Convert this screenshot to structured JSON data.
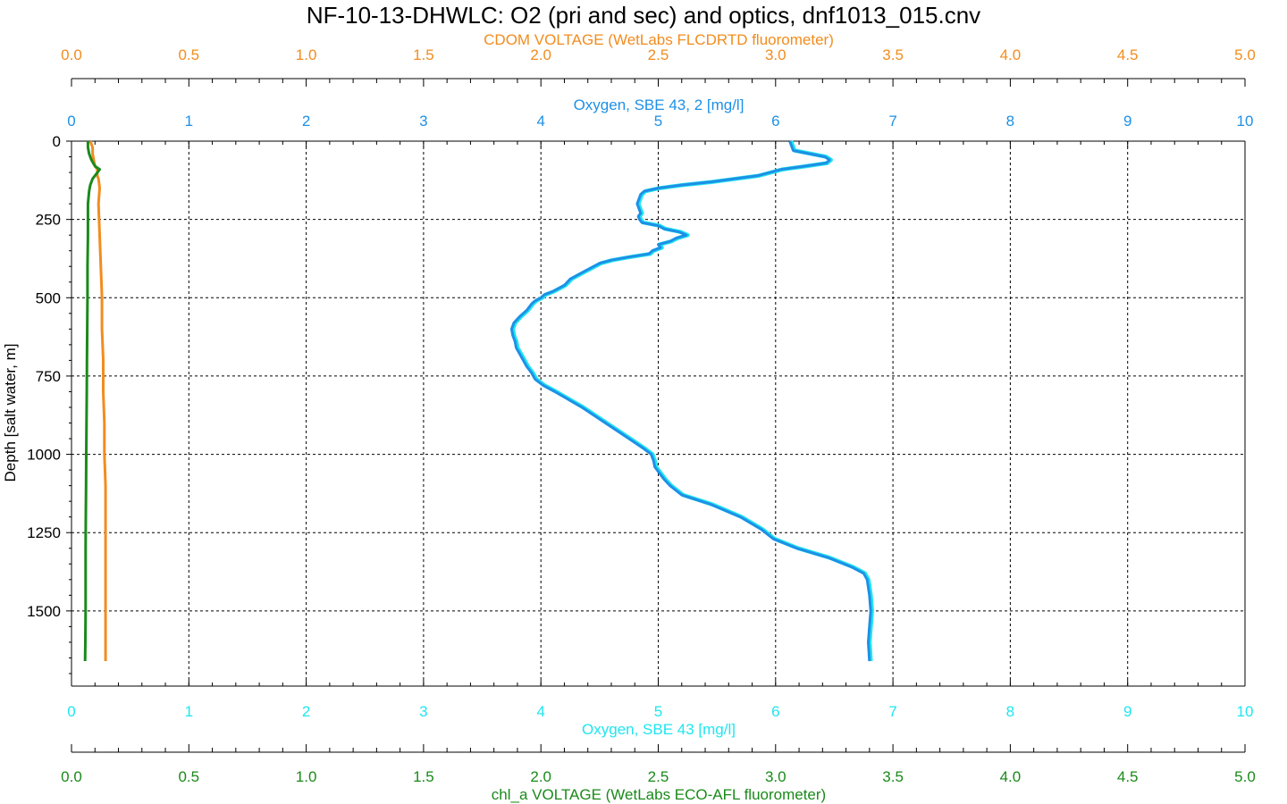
{
  "chart_data": {
    "type": "line",
    "title": "NF-10-13-DHWLC: O2 (pri and sec) and optics, dnf1013_015.cnv",
    "grid": true,
    "colors": {
      "cdom": "#f28c1e",
      "oxy2": "#1e90e6",
      "oxy1": "#1ee6f0",
      "chl": "#1a8a1a",
      "axis": "#000000"
    },
    "y_axis": {
      "label": "Depth [salt water, m]",
      "range": [
        0,
        1740
      ],
      "ticks": [
        "0",
        "250",
        "500",
        "750",
        "1000",
        "1250",
        "1500"
      ],
      "tick_values": [
        0,
        250,
        500,
        750,
        1000,
        1250,
        1500
      ],
      "inverted": true
    },
    "x_axes": {
      "cdom": {
        "label": "CDOM VOLTAGE (WetLabs FLCDRTD fluorometer)",
        "range": [
          0,
          5
        ],
        "ticks": [
          "0.0",
          "0.5",
          "1.0",
          "1.5",
          "2.0",
          "2.5",
          "3.0",
          "3.5",
          "4.0",
          "4.5",
          "5.0"
        ]
      },
      "oxy2": {
        "label": "Oxygen, SBE 43, 2 [mg/l]",
        "range": [
          0,
          10
        ],
        "ticks": [
          "0",
          "1",
          "2",
          "3",
          "4",
          "5",
          "6",
          "7",
          "8",
          "9",
          "10"
        ]
      },
      "oxy1": {
        "label": "Oxygen, SBE 43 [mg/l]",
        "range": [
          0,
          10
        ],
        "ticks": [
          "0",
          "1",
          "2",
          "3",
          "4",
          "5",
          "6",
          "7",
          "8",
          "9",
          "10"
        ]
      },
      "chl": {
        "label": "chl_a VOLTAGE (WetLabs ECO-AFL fluorometer)",
        "range": [
          0,
          5
        ],
        "ticks": [
          "0.0",
          "0.5",
          "1.0",
          "1.5",
          "2.0",
          "2.5",
          "3.0",
          "3.5",
          "4.0",
          "4.5",
          "5.0"
        ]
      }
    },
    "series": [
      {
        "key": "oxy1",
        "axis": "oxy1",
        "depth": [
          0,
          30,
          50,
          60,
          70,
          80,
          90,
          100,
          110,
          120,
          130,
          140,
          150,
          160,
          170,
          180,
          190,
          200,
          210,
          220,
          230,
          240,
          250,
          260,
          270,
          280,
          290,
          300,
          310,
          320,
          330,
          340,
          350,
          360,
          370,
          380,
          390,
          400,
          420,
          440,
          460,
          480,
          490,
          500,
          510,
          520,
          540,
          560,
          580,
          600,
          620,
          640,
          660,
          680,
          700,
          720,
          740,
          760,
          780,
          800,
          850,
          900,
          950,
          980,
          1000,
          1020,
          1040,
          1060,
          1080,
          1100,
          1130,
          1160,
          1200,
          1240,
          1270,
          1300,
          1330,
          1360,
          1380,
          1400,
          1450,
          1500,
          1550,
          1600,
          1660
        ],
        "values": [
          6.12,
          6.15,
          6.42,
          6.46,
          6.43,
          6.25,
          6.05,
          5.95,
          5.85,
          5.65,
          5.45,
          5.2,
          5.0,
          4.88,
          4.85,
          4.84,
          4.83,
          4.82,
          4.83,
          4.84,
          4.85,
          4.83,
          4.84,
          4.86,
          5.0,
          5.05,
          5.18,
          5.24,
          5.15,
          5.1,
          5.0,
          5.02,
          4.95,
          4.92,
          4.75,
          4.6,
          4.5,
          4.45,
          4.35,
          4.25,
          4.2,
          4.1,
          4.03,
          4.0,
          3.95,
          3.92,
          3.88,
          3.82,
          3.77,
          3.75,
          3.76,
          3.78,
          3.79,
          3.82,
          3.85,
          3.88,
          3.92,
          3.95,
          4.02,
          4.12,
          4.35,
          4.55,
          4.75,
          4.87,
          4.94,
          4.96,
          4.97,
          5.01,
          5.05,
          5.1,
          5.2,
          5.45,
          5.7,
          5.88,
          5.98,
          6.18,
          6.45,
          6.65,
          6.75,
          6.78,
          6.8,
          6.81,
          6.8,
          6.79,
          6.8
        ]
      },
      {
        "key": "oxy2",
        "axis": "oxy2",
        "depth": [
          0,
          30,
          50,
          60,
          70,
          80,
          90,
          100,
          110,
          120,
          130,
          140,
          150,
          160,
          170,
          180,
          190,
          200,
          210,
          220,
          230,
          240,
          250,
          260,
          270,
          280,
          290,
          300,
          310,
          320,
          330,
          340,
          350,
          360,
          370,
          380,
          390,
          400,
          420,
          440,
          460,
          480,
          490,
          500,
          510,
          520,
          540,
          560,
          580,
          600,
          620,
          640,
          660,
          680,
          700,
          720,
          740,
          760,
          780,
          800,
          850,
          900,
          950,
          980,
          1000,
          1020,
          1040,
          1060,
          1080,
          1100,
          1130,
          1160,
          1200,
          1240,
          1270,
          1300,
          1330,
          1360,
          1380,
          1400,
          1450,
          1500,
          1550,
          1600,
          1660
        ],
        "values": [
          6.12,
          6.15,
          6.42,
          6.46,
          6.43,
          6.25,
          6.05,
          5.95,
          5.85,
          5.65,
          5.45,
          5.2,
          5.0,
          4.88,
          4.85,
          4.84,
          4.83,
          4.82,
          4.83,
          4.84,
          4.85,
          4.83,
          4.84,
          4.86,
          5.0,
          5.05,
          5.18,
          5.24,
          5.15,
          5.1,
          5.0,
          5.02,
          4.95,
          4.92,
          4.75,
          4.6,
          4.5,
          4.45,
          4.35,
          4.25,
          4.2,
          4.1,
          4.03,
          4.0,
          3.95,
          3.92,
          3.88,
          3.82,
          3.77,
          3.75,
          3.76,
          3.78,
          3.79,
          3.82,
          3.85,
          3.88,
          3.92,
          3.95,
          4.02,
          4.12,
          4.35,
          4.55,
          4.75,
          4.87,
          4.94,
          4.96,
          4.97,
          5.01,
          5.05,
          5.1,
          5.2,
          5.45,
          5.7,
          5.88,
          5.98,
          6.18,
          6.45,
          6.65,
          6.75,
          6.78,
          6.8,
          6.81,
          6.8,
          6.79,
          6.8
        ]
      },
      {
        "key": "cdom",
        "axis": "cdom",
        "depth": [
          0,
          20,
          40,
          60,
          80,
          90,
          100,
          110,
          120,
          150,
          200,
          300,
          400,
          500,
          600,
          700,
          800,
          900,
          1000,
          1100,
          1200,
          1300,
          1400,
          1500,
          1600,
          1660
        ],
        "values": [
          0.08,
          0.09,
          0.09,
          0.095,
          0.1,
          0.11,
          0.11,
          0.11,
          0.115,
          0.12,
          0.115,
          0.12,
          0.125,
          0.13,
          0.13,
          0.135,
          0.135,
          0.14,
          0.14,
          0.145,
          0.145,
          0.145,
          0.145,
          0.145,
          0.145,
          0.145
        ]
      },
      {
        "key": "chl",
        "axis": "chl",
        "depth": [
          0,
          20,
          40,
          60,
          80,
          90,
          100,
          110,
          120,
          140,
          160,
          200,
          300,
          400,
          500,
          600,
          700,
          800,
          900,
          1000,
          1100,
          1200,
          1300,
          1400,
          1500,
          1600,
          1660
        ],
        "values": [
          0.07,
          0.07,
          0.075,
          0.085,
          0.1,
          0.12,
          0.11,
          0.1,
          0.09,
          0.08,
          0.075,
          0.07,
          0.07,
          0.068,
          0.068,
          0.067,
          0.066,
          0.065,
          0.064,
          0.063,
          0.062,
          0.061,
          0.06,
          0.06,
          0.06,
          0.059,
          0.058
        ]
      }
    ]
  }
}
